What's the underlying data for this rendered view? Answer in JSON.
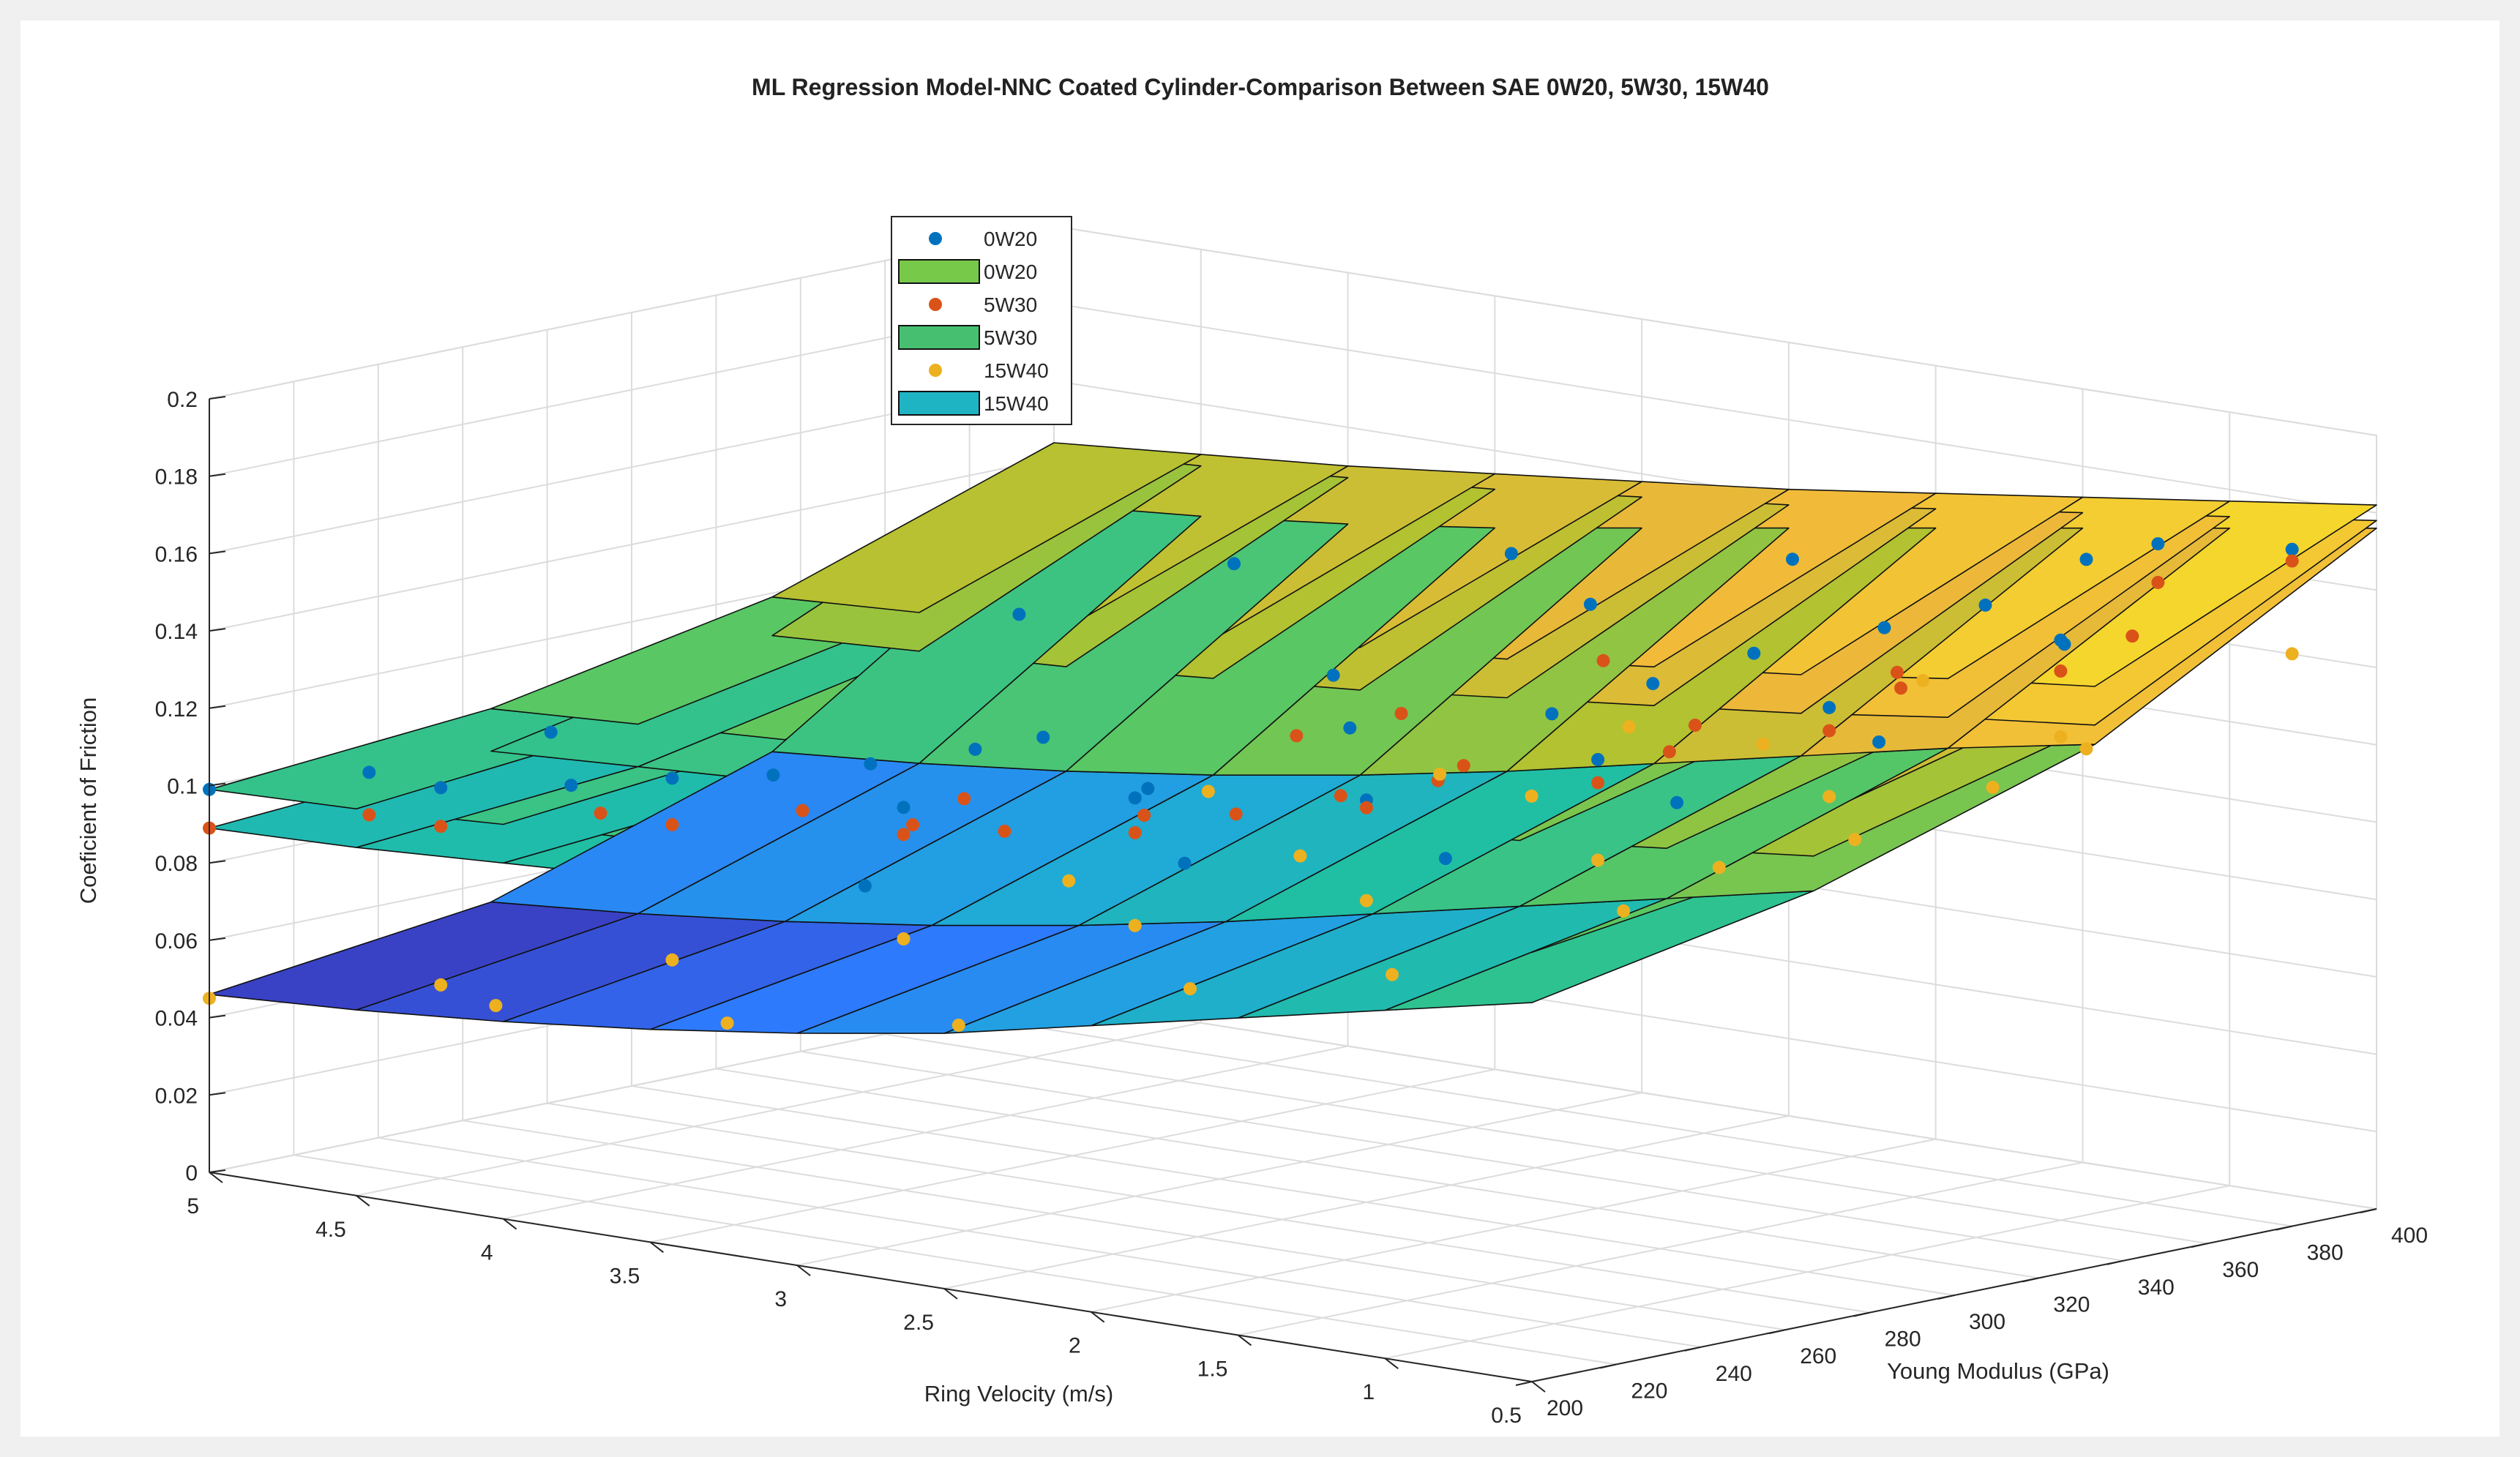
{
  "chart_data": {
    "type": "surface3d",
    "title": "ML Regression Model-NNC Coated Cylinder-Comparison Between SAE 0W20, 5W30, 15W40",
    "xlabel": "Ring Velocity (m/s)",
    "ylabel": "Young Modulus (GPa)",
    "zlabel": "Coeficient of Friction",
    "xlim": [
      0.5,
      5
    ],
    "ylim": [
      200,
      400
    ],
    "zlim": [
      0,
      0.2
    ],
    "x_ticks": [
      0.5,
      1,
      1.5,
      2,
      2.5,
      3,
      3.5,
      4,
      4.5,
      5
    ],
    "x_tick_labels": [
      "0.5",
      "1",
      "1.5",
      "2",
      "2.5",
      "3",
      "3.5",
      "4",
      "4.5",
      "5"
    ],
    "y_ticks": [
      200,
      220,
      240,
      260,
      280,
      300,
      320,
      340,
      360,
      380,
      400
    ],
    "y_tick_labels": [
      "200",
      "220",
      "240",
      "260",
      "280",
      "300",
      "320",
      "340",
      "360",
      "380",
      "400"
    ],
    "z_ticks": [
      0,
      0.02,
      0.04,
      0.06,
      0.08,
      0.1,
      0.12,
      0.14,
      0.16,
      0.18,
      0.2
    ],
    "z_tick_labels": [
      "0",
      "0.02",
      "0.04",
      "0.06",
      "0.08",
      "0.1",
      "0.12",
      "0.14",
      "0.16",
      "0.18",
      "0.2"
    ],
    "grid": true,
    "legend_position": "top-left",
    "legend": [
      {
        "label": "0W20",
        "kind": "marker",
        "color": "#0072BD"
      },
      {
        "label": "0W20",
        "kind": "patch",
        "color": "#77c94a"
      },
      {
        "label": "5W30",
        "kind": "marker",
        "color": "#D95319"
      },
      {
        "label": "5W30",
        "kind": "patch",
        "color": "#46c070"
      },
      {
        "label": "15W40",
        "kind": "marker",
        "color": "#EDB120"
      },
      {
        "label": "15W40",
        "kind": "patch",
        "color": "#1fb4c4"
      }
    ],
    "colormap": [
      "#3e26a8",
      "#2e78ff",
      "#1fa8dc",
      "#20c0a0",
      "#5cc760",
      "#b0c230",
      "#f0b83a",
      "#f5d82c",
      "#f9fb0e"
    ],
    "surface_x": [
      0.5,
      1,
      1.5,
      2,
      2.5,
      3,
      3.5,
      4,
      4.5,
      5
    ],
    "surface_y": [
      200,
      266.7,
      333.3,
      400
    ],
    "surfaces": [
      {
        "name": "0W20",
        "values": [
          [
            0.121,
            0.131,
            0.15,
            0.182
          ],
          [
            0.117,
            0.127,
            0.146,
            0.177
          ],
          [
            0.114,
            0.123,
            0.141,
            0.172
          ],
          [
            0.111,
            0.12,
            0.137,
            0.167
          ],
          [
            0.108,
            0.117,
            0.133,
            0.162
          ],
          [
            0.106,
            0.114,
            0.13,
            0.158
          ],
          [
            0.104,
            0.111,
            0.126,
            0.154
          ],
          [
            0.102,
            0.109,
            0.123,
            0.15
          ],
          [
            0.1,
            0.107,
            0.121,
            0.147
          ],
          [
            0.099,
            0.105,
            0.119,
            0.144
          ]
        ]
      },
      {
        "name": "5W30",
        "values": [
          [
            0.111,
            0.121,
            0.14,
            0.178
          ],
          [
            0.107,
            0.117,
            0.136,
            0.173
          ],
          [
            0.104,
            0.113,
            0.131,
            0.168
          ],
          [
            0.101,
            0.11,
            0.127,
            0.163
          ],
          [
            0.098,
            0.106,
            0.123,
            0.158
          ],
          [
            0.096,
            0.103,
            0.119,
            0.154
          ],
          [
            0.094,
            0.101,
            0.116,
            0.15
          ],
          [
            0.092,
            0.098,
            0.113,
            0.147
          ],
          [
            0.09,
            0.096,
            0.111,
            0.144
          ],
          [
            0.089,
            0.094,
            0.109,
            0.142
          ]
        ]
      },
      {
        "name": "15W40",
        "values": [
          [
            0.098,
            0.112,
            0.135,
            0.176
          ],
          [
            0.09,
            0.104,
            0.128,
            0.17
          ],
          [
            0.082,
            0.096,
            0.12,
            0.164
          ],
          [
            0.074,
            0.088,
            0.112,
            0.158
          ],
          [
            0.066,
            0.08,
            0.104,
            0.152
          ],
          [
            0.06,
            0.073,
            0.097,
            0.146
          ],
          [
            0.055,
            0.067,
            0.091,
            0.14
          ],
          [
            0.051,
            0.062,
            0.086,
            0.135
          ],
          [
            0.048,
            0.058,
            0.082,
            0.131
          ],
          [
            0.046,
            0.055,
            0.079,
            0.128
          ]
        ]
      }
    ],
    "scatter": [
      {
        "name": "0W20",
        "color": "#0072BD",
        "points": [
          [
            5,
            200,
            0.099
          ],
          [
            4.5,
            220,
            0.101
          ],
          [
            4,
            240,
            0.105
          ],
          [
            3.5,
            260,
            0.099
          ],
          [
            3,
            280,
            0.103
          ],
          [
            2.5,
            300,
            0.104
          ],
          [
            2,
            320,
            0.116
          ],
          [
            1.5,
            340,
            0.131
          ],
          [
            1,
            360,
            0.15
          ],
          [
            0.5,
            380,
            0.175
          ],
          [
            4.6,
            210,
            0.106
          ],
          [
            4.2,
            230,
            0.103
          ],
          [
            3.8,
            250,
            0.106
          ],
          [
            3.4,
            270,
            0.113
          ],
          [
            3.1,
            290,
            0.102
          ],
          [
            2.7,
            310,
            0.118
          ],
          [
            2.3,
            330,
            0.122
          ],
          [
            1.9,
            350,
            0.138
          ],
          [
            1.4,
            370,
            0.152
          ],
          [
            1.1,
            390,
            0.167
          ],
          [
            4.7,
            260,
            0.104
          ],
          [
            3.9,
            280,
            0.101
          ],
          [
            3.6,
            300,
            0.107
          ],
          [
            2.9,
            320,
            0.127
          ],
          [
            2.1,
            340,
            0.13
          ],
          [
            1.6,
            360,
            0.146
          ],
          [
            1.2,
            380,
            0.164
          ],
          [
            2.6,
            360,
            0.14
          ],
          [
            2.2,
            380,
            0.152
          ],
          [
            3.3,
            390,
            0.138
          ],
          [
            4.1,
            380,
            0.128
          ],
          [
            4.4,
            350,
            0.118
          ],
          [
            2.4,
            250,
            0.1
          ],
          [
            1.8,
            270,
            0.104
          ],
          [
            1.3,
            290,
            0.12
          ],
          [
            0.9,
            310,
            0.136
          ],
          [
            0.7,
            340,
            0.157
          ],
          [
            3.2,
            230,
            0.089
          ]
        ]
      },
      {
        "name": "5W30",
        "color": "#D95319",
        "points": [
          [
            5,
            200,
            0.089
          ],
          [
            4.5,
            220,
            0.091
          ],
          [
            4,
            240,
            0.093
          ],
          [
            3.5,
            260,
            0.092
          ],
          [
            3,
            280,
            0.094
          ],
          [
            2.5,
            300,
            0.102
          ],
          [
            2,
            320,
            0.11
          ],
          [
            1.5,
            340,
            0.125
          ],
          [
            1,
            360,
            0.142
          ],
          [
            0.5,
            380,
            0.172
          ],
          [
            4.6,
            210,
            0.095
          ],
          [
            4.1,
            230,
            0.097
          ],
          [
            3.7,
            250,
            0.098
          ],
          [
            3.3,
            270,
            0.093
          ],
          [
            2.8,
            290,
            0.099
          ],
          [
            2.4,
            310,
            0.108
          ],
          [
            1.9,
            330,
            0.117
          ],
          [
            1.4,
            350,
            0.135
          ],
          [
            0.9,
            370,
            0.15
          ],
          [
            3.9,
            290,
            0.083
          ],
          [
            3.4,
            310,
            0.087
          ],
          [
            2.6,
            330,
            0.105
          ],
          [
            2.1,
            350,
            0.117
          ],
          [
            1.7,
            370,
            0.131
          ],
          [
            1.1,
            390,
            0.157
          ],
          [
            3.1,
            350,
            0.108
          ],
          [
            2.7,
            370,
            0.122
          ],
          [
            4.3,
            330,
            0.076
          ],
          [
            3.6,
            360,
            0.094
          ],
          [
            2.3,
            280,
            0.112
          ]
        ]
      },
      {
        "name": "15W40",
        "color": "#EDB120",
        "points": [
          [
            5,
            200,
            0.045
          ],
          [
            4.5,
            220,
            0.05
          ],
          [
            4,
            240,
            0.058
          ],
          [
            3.5,
            260,
            0.065
          ],
          [
            3,
            280,
            0.07
          ],
          [
            2.5,
            300,
            0.078
          ],
          [
            2,
            320,
            0.09
          ],
          [
            1.5,
            340,
            0.108
          ],
          [
            1,
            360,
            0.125
          ],
          [
            0.5,
            380,
            0.148
          ],
          [
            4.6,
            240,
            0.039
          ],
          [
            4.1,
            260,
            0.036
          ],
          [
            3.6,
            280,
            0.037
          ],
          [
            3.1,
            300,
            0.048
          ],
          [
            2.7,
            320,
            0.052
          ],
          [
            2.2,
            340,
            0.07
          ],
          [
            1.7,
            360,
            0.09
          ],
          [
            1.2,
            380,
            0.115
          ],
          [
            3.8,
            320,
            0.063
          ],
          [
            3.3,
            340,
            0.071
          ],
          [
            2.8,
            360,
            0.088
          ],
          [
            2.3,
            380,
            0.103
          ],
          [
            1.9,
            390,
            0.122
          ],
          [
            3.9,
            360,
            0.076
          ],
          [
            3.4,
            380,
            0.082
          ],
          [
            2.9,
            390,
            0.098
          ],
          [
            1.3,
            300,
            0.101
          ],
          [
            0.8,
            330,
            0.121
          ]
        ]
      }
    ]
  }
}
